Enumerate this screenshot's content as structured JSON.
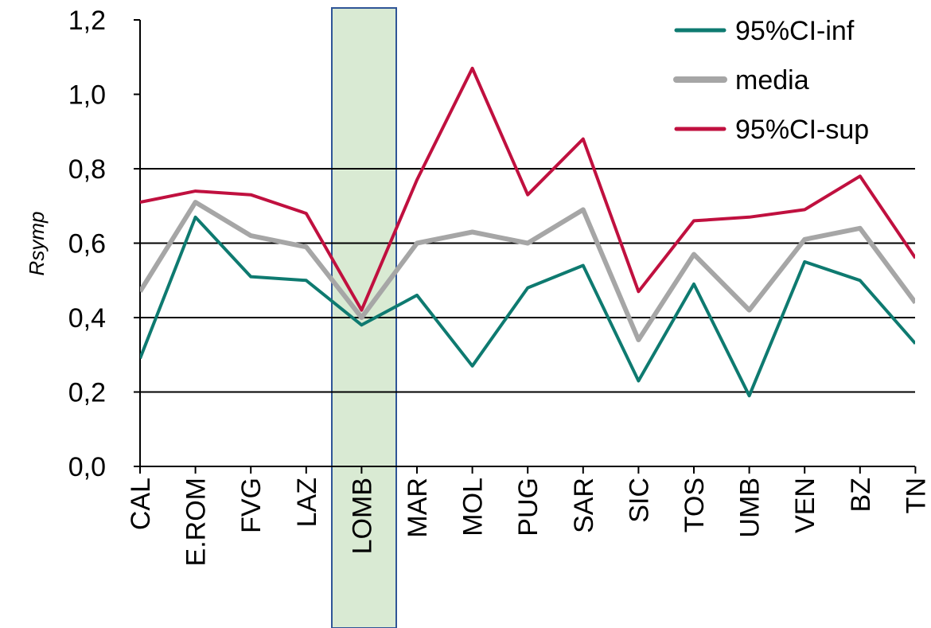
{
  "chart_data": {
    "type": "line",
    "categories": [
      "CAL",
      "E.ROM",
      "FVG",
      "LAZ",
      "LOMB",
      "MAR",
      "MOL",
      "PUG",
      "SAR",
      "SIC",
      "TOS",
      "UMB",
      "VEN",
      "BZ",
      "TN"
    ],
    "highlight_category": "LOMB",
    "ylabel": "Rsymp",
    "ylim": [
      0,
      1.2
    ],
    "yticks": [
      "0,0",
      "0,2",
      "0,4",
      "0,6",
      "0,8",
      "1,0",
      "1,2"
    ],
    "gridlines": [
      0.2,
      0.4,
      0.6,
      0.8
    ],
    "legend_position": "top-right",
    "series": [
      {
        "name": "95%CI-inf",
        "color": "#0e7a70",
        "values": [
          0.29,
          0.67,
          0.51,
          0.5,
          0.38,
          0.46,
          0.27,
          0.48,
          0.54,
          0.23,
          0.49,
          0.19,
          0.55,
          0.5,
          0.33
        ]
      },
      {
        "name": "media",
        "color": "#a6a6a6",
        "values": [
          0.47,
          0.71,
          0.62,
          0.59,
          0.4,
          0.6,
          0.63,
          0.6,
          0.69,
          0.34,
          0.57,
          0.42,
          0.61,
          0.64,
          0.44
        ]
      },
      {
        "name": "95%CI-sup",
        "color": "#c0103f",
        "values": [
          0.71,
          0.74,
          0.73,
          0.68,
          0.42,
          0.77,
          1.07,
          0.73,
          0.88,
          0.47,
          0.66,
          0.67,
          0.69,
          0.78,
          0.56
        ]
      }
    ]
  }
}
